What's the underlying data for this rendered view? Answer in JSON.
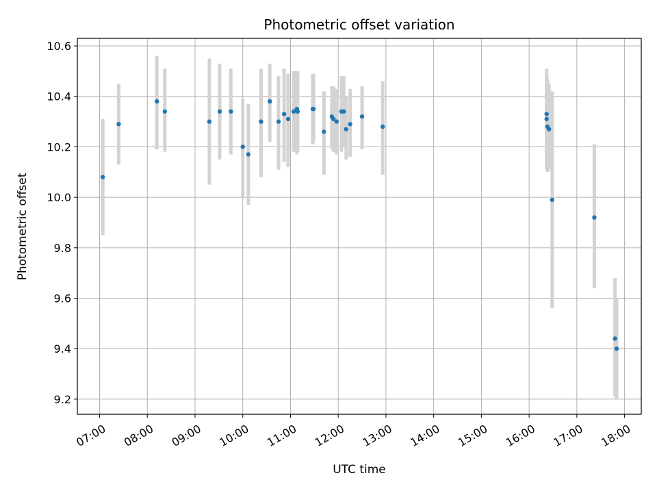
{
  "chart_data": {
    "type": "scatter",
    "title": "Photometric offset variation",
    "xlabel": "UTC time",
    "ylabel": "Photometric offset",
    "x_tick_labels": [
      "07:00",
      "08:00",
      "09:00",
      "10:00",
      "11:00",
      "12:00",
      "13:00",
      "14:00",
      "15:00",
      "16:00",
      "17:00",
      "18:00"
    ],
    "y_ticks": [
      "9.2",
      "9.4",
      "9.6",
      "9.8",
      "10.0",
      "10.2",
      "10.4",
      "10.6"
    ],
    "xlim": [
      "06:32",
      "18:21"
    ],
    "ylim": [
      9.14,
      10.63
    ],
    "grid": true,
    "errorbar_color": "#d3d3d3",
    "point_color": "#1f77b4",
    "points": [
      {
        "x": "07:04",
        "y": 10.08,
        "ylo": 9.85,
        "yhi": 10.31
      },
      {
        "x": "07:24",
        "y": 10.29,
        "ylo": 10.13,
        "yhi": 10.45
      },
      {
        "x": "08:12",
        "y": 10.38,
        "ylo": 10.19,
        "yhi": 10.56
      },
      {
        "x": "08:22",
        "y": 10.34,
        "ylo": 10.18,
        "yhi": 10.51
      },
      {
        "x": "09:18",
        "y": 10.3,
        "ylo": 10.05,
        "yhi": 10.55
      },
      {
        "x": "09:31",
        "y": 10.34,
        "ylo": 10.15,
        "yhi": 10.53
      },
      {
        "x": "09:45",
        "y": 10.34,
        "ylo": 10.17,
        "yhi": 10.51
      },
      {
        "x": "10:00",
        "y": 10.2,
        "ylo": 10.0,
        "yhi": 10.39
      },
      {
        "x": "10:07",
        "y": 10.17,
        "ylo": 9.97,
        "yhi": 10.37
      },
      {
        "x": "10:23",
        "y": 10.3,
        "ylo": 10.08,
        "yhi": 10.51
      },
      {
        "x": "10:34",
        "y": 10.38,
        "ylo": 10.22,
        "yhi": 10.53
      },
      {
        "x": "10:45",
        "y": 10.3,
        "ylo": 10.11,
        "yhi": 10.48
      },
      {
        "x": "10:52",
        "y": 10.33,
        "ylo": 10.14,
        "yhi": 10.51
      },
      {
        "x": "10:57",
        "y": 10.31,
        "ylo": 10.12,
        "yhi": 10.49
      },
      {
        "x": "11:04",
        "y": 10.34,
        "ylo": 10.18,
        "yhi": 10.5
      },
      {
        "x": "11:08",
        "y": 10.35,
        "ylo": 10.17,
        "yhi": 10.5
      },
      {
        "x": "11:09",
        "y": 10.34,
        "ylo": 10.18,
        "yhi": 10.5
      },
      {
        "x": "11:28",
        "y": 10.35,
        "ylo": 10.21,
        "yhi": 10.49
      },
      {
        "x": "11:29",
        "y": 10.35,
        "ylo": 10.22,
        "yhi": 10.49
      },
      {
        "x": "11:42",
        "y": 10.26,
        "ylo": 10.09,
        "yhi": 10.42
      },
      {
        "x": "11:52",
        "y": 10.32,
        "ylo": 10.19,
        "yhi": 10.44
      },
      {
        "x": "11:54",
        "y": 10.31,
        "ylo": 10.18,
        "yhi": 10.44
      },
      {
        "x": "11:58",
        "y": 10.3,
        "ylo": 10.17,
        "yhi": 10.43
      },
      {
        "x": "12:04",
        "y": 10.34,
        "ylo": 10.18,
        "yhi": 10.48
      },
      {
        "x": "12:07",
        "y": 10.34,
        "ylo": 10.2,
        "yhi": 10.48
      },
      {
        "x": "12:10",
        "y": 10.27,
        "ylo": 10.15,
        "yhi": 10.4
      },
      {
        "x": "12:15",
        "y": 10.29,
        "ylo": 10.16,
        "yhi": 10.43
      },
      {
        "x": "12:30",
        "y": 10.32,
        "ylo": 10.19,
        "yhi": 10.44
      },
      {
        "x": "12:56",
        "y": 10.28,
        "ylo": 10.09,
        "yhi": 10.46
      },
      {
        "x": "16:22",
        "y": 10.33,
        "ylo": 10.11,
        "yhi": 10.51
      },
      {
        "x": "16:22",
        "y": 10.31,
        "ylo": 10.12,
        "yhi": 10.49
      },
      {
        "x": "16:23",
        "y": 10.28,
        "ylo": 10.1,
        "yhi": 10.47
      },
      {
        "x": "16:25",
        "y": 10.27,
        "ylo": 10.11,
        "yhi": 10.45
      },
      {
        "x": "16:29",
        "y": 9.99,
        "ylo": 9.56,
        "yhi": 10.42
      },
      {
        "x": "17:22",
        "y": 9.92,
        "ylo": 9.64,
        "yhi": 10.21
      },
      {
        "x": "17:48",
        "y": 9.44,
        "ylo": 9.21,
        "yhi": 9.68
      },
      {
        "x": "17:50",
        "y": 9.4,
        "ylo": 9.2,
        "yhi": 9.6
      }
    ]
  }
}
